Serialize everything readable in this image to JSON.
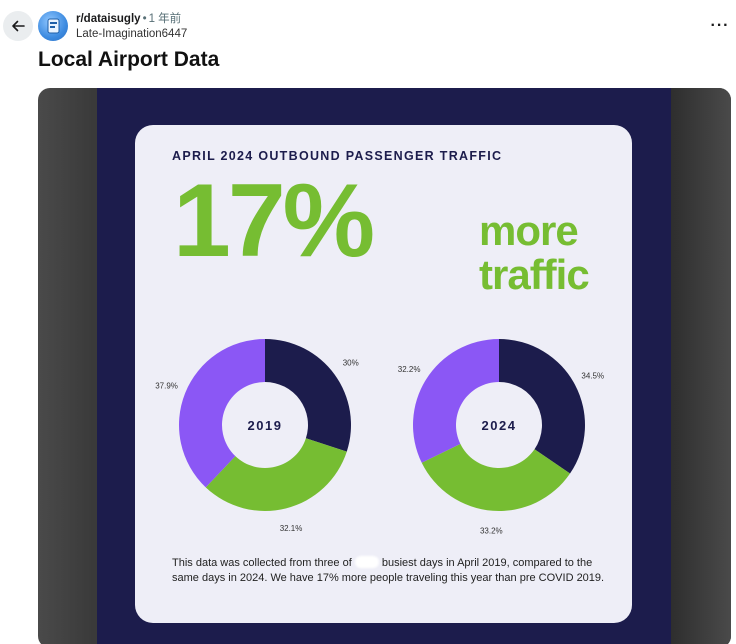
{
  "post": {
    "subreddit": "r/dataisugly",
    "age": "1 年前",
    "author": "Late-Imagination6447",
    "title": "Local Airport Data",
    "more_label": "···"
  },
  "icons": {
    "back": "arrow-left-icon",
    "more": "more-horizontal-icon",
    "avatar": "subreddit-avatar"
  },
  "infographic": {
    "heading": "APRIL 2024 OUTBOUND PASSENGER TRAFFIC",
    "big_percent": "17%",
    "big_text_line1": "more",
    "big_text_line2": "traffic",
    "note_part1": "This data was collected from three of",
    "note_part2": "busiest days in April 2019, compared to the same days in 2024. We have 17% more people traveling this year than pre COVID 2019.",
    "colors": {
      "navy": "#1c1c4c",
      "green": "#76bd32",
      "purple": "#8b57f5",
      "card": "#eeeef7"
    }
  },
  "chart_data": [
    {
      "type": "pie",
      "title": "2019",
      "categories": [
        "navy",
        "green",
        "purple"
      ],
      "values": [
        30,
        32.1,
        37.9
      ],
      "labels": [
        "30%",
        "32.1%",
        "37.9%"
      ],
      "colors": [
        "#1c1c4c",
        "#76bd32",
        "#8b57f5"
      ]
    },
    {
      "type": "pie",
      "title": "2024",
      "categories": [
        "navy",
        "green",
        "purple"
      ],
      "values": [
        34.5,
        33.2,
        32.2
      ],
      "labels": [
        "34.5%",
        "33.2%",
        "32.2%"
      ],
      "colors": [
        "#1c1c4c",
        "#76bd32",
        "#8b57f5"
      ]
    }
  ]
}
